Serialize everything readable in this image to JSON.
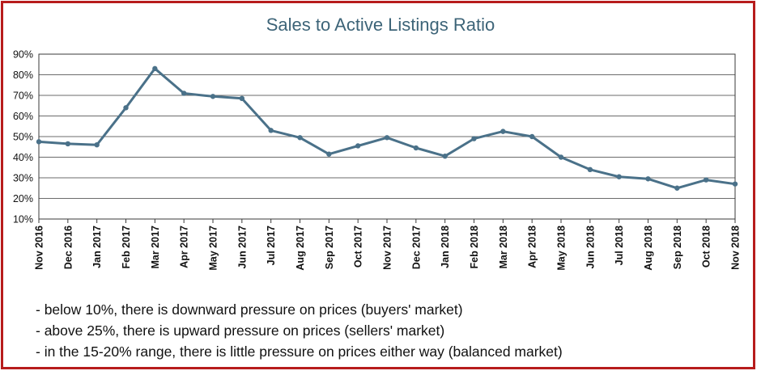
{
  "chart_data": {
    "type": "line",
    "title": "Sales to Active Listings Ratio",
    "xlabel": "",
    "ylabel": "",
    "categories": [
      "Nov 2016",
      "Dec 2016",
      "Jan 2017",
      "Feb 2017",
      "Mar 2017",
      "Apr 2017",
      "May 2017",
      "Jun 2017",
      "Jul 2017",
      "Aug 2017",
      "Sep 2017",
      "Oct 2017",
      "Nov 2017",
      "Dec 2017",
      "Jan 2018",
      "Feb 2018",
      "Mar 2018",
      "Apr 2018",
      "May 2018",
      "Jun 2018",
      "Jul 2018",
      "Aug 2018",
      "Sep 2018",
      "Oct 2018",
      "Nov 2018"
    ],
    "series": [
      {
        "values": [
          47.5,
          46.5,
          46,
          64,
          83,
          71,
          69.5,
          68.5,
          53,
          49.5,
          41.5,
          45.5,
          49.5,
          44.5,
          40.5,
          49,
          52.5,
          50,
          40,
          34,
          30.5,
          29.5,
          25,
          29,
          27
        ]
      }
    ],
    "ylim": [
      10,
      90
    ],
    "yticks": [
      "10%",
      "20%",
      "30%",
      "40%",
      "50%",
      "60%",
      "70%",
      "80%",
      "90%"
    ],
    "grid": true,
    "legend": "none",
    "line_color": "#4a7189"
  },
  "notes": [
    "- below 10%, there is downward pressure on prices (buyers' market)",
    "- above 25%, there is upward pressure on prices (sellers' market)",
    "- in the 15-20% range, there is little pressure on prices either way (balanced market)"
  ]
}
